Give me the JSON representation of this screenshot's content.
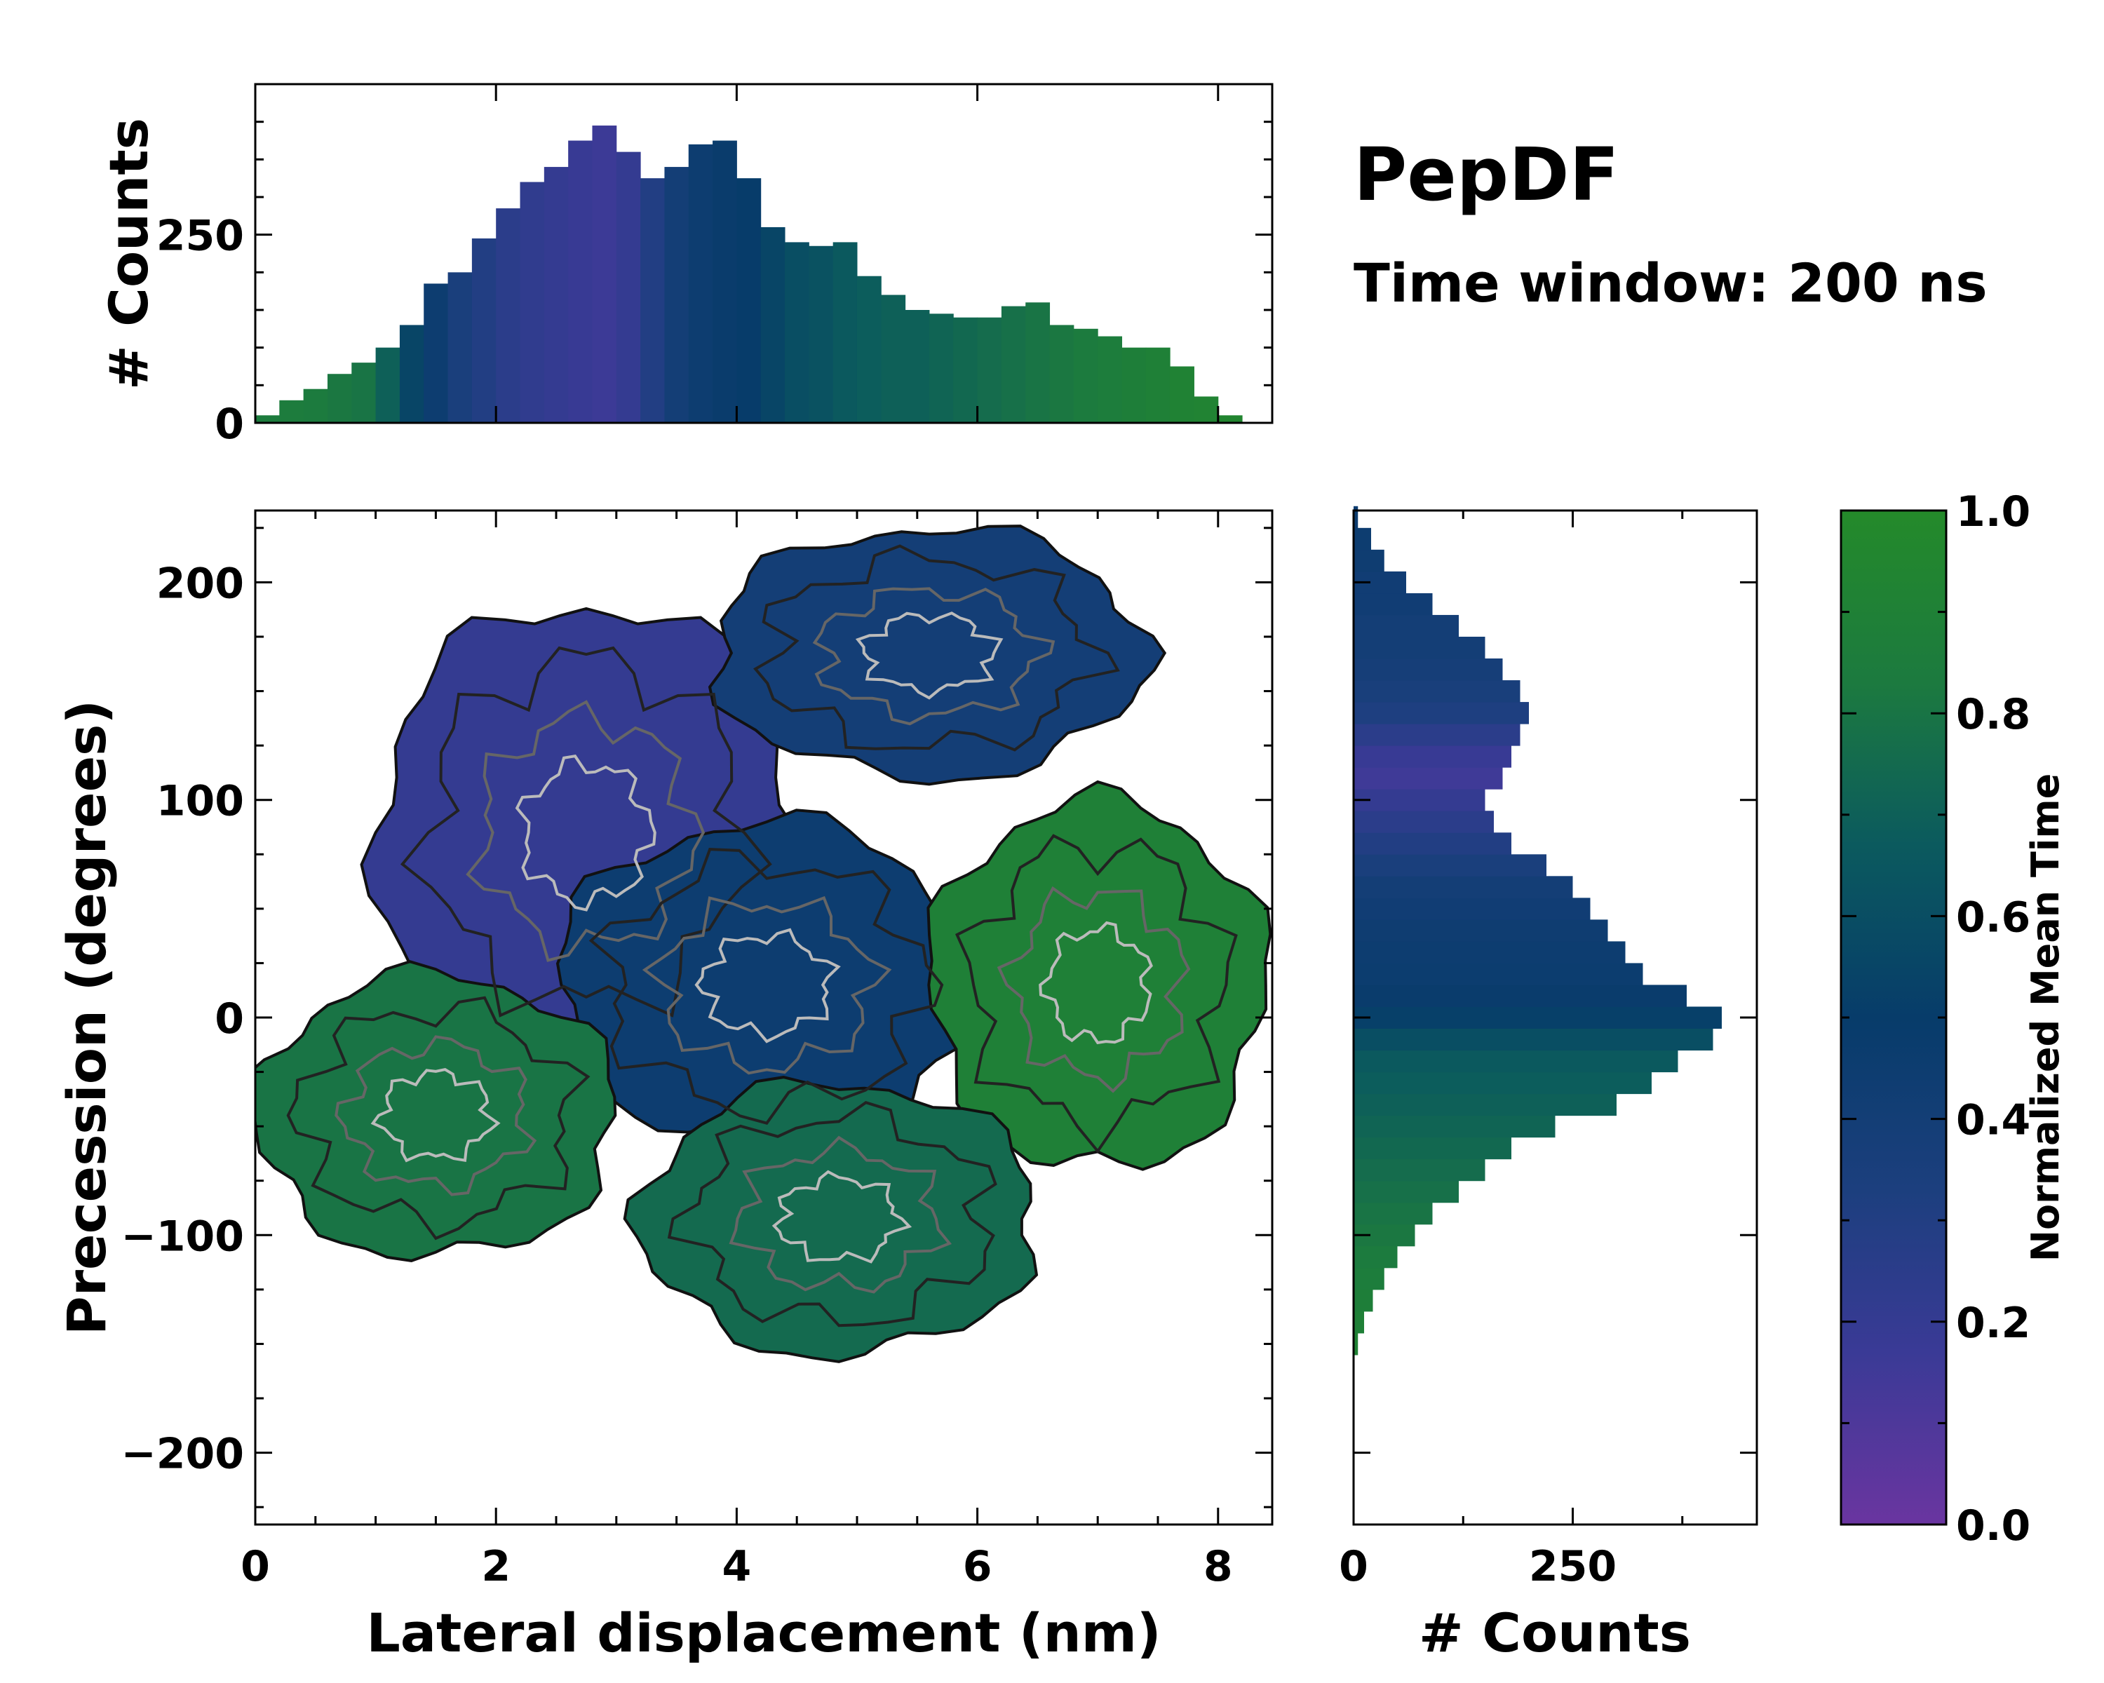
{
  "chart_data": {
    "type": "heatmap",
    "title": "PepDF",
    "subtitle": "Time window: 200 ns",
    "main": {
      "xlabel": "Lateral displacement (nm)",
      "ylabel": "Precession (degrees)",
      "xlim": [
        0,
        8.45
      ],
      "ylim": [
        -233,
        233
      ],
      "xticks": [
        0,
        2,
        4,
        6,
        8
      ],
      "xtick_labels": [
        "0",
        "2",
        "4",
        "6",
        "8"
      ],
      "yticks": [
        -200,
        -100,
        0,
        100,
        200
      ],
      "ytick_labels": [
        "−200",
        "−100",
        "0",
        "100",
        "200"
      ],
      "density_regions": [
        {
          "name": "upper-left lobe",
          "x": [
            1.0,
            4.5
          ],
          "y": [
            -20,
            190
          ],
          "mean_time": 0.2
        },
        {
          "name": "upper lobe",
          "x": [
            3.8,
            7.4
          ],
          "y": [
            110,
            225
          ],
          "mean_time": 0.4
        },
        {
          "name": "central region",
          "x": [
            2.5,
            6.0
          ],
          "y": [
            -60,
            90
          ],
          "mean_time": 0.45
        },
        {
          "name": "right lobe",
          "x": [
            5.6,
            8.4
          ],
          "y": [
            -70,
            100
          ],
          "mean_time": 0.9
        },
        {
          "name": "lower-left lobe",
          "x": [
            0.0,
            3.0
          ],
          "y": [
            -110,
            20
          ],
          "mean_time": 0.8
        },
        {
          "name": "lower lobe",
          "x": [
            3.2,
            6.5
          ],
          "y": [
            -155,
            -30
          ],
          "mean_time": 0.75
        }
      ]
    },
    "top_histogram": {
      "ylabel": "# Counts",
      "ylim": [
        0,
        450
      ],
      "yticks": [
        0,
        250
      ],
      "ytick_labels": [
        "0",
        "250"
      ],
      "x": [
        0.1,
        0.3,
        0.5,
        0.7,
        0.9,
        1.1,
        1.3,
        1.5,
        1.7,
        1.9,
        2.1,
        2.3,
        2.5,
        2.7,
        2.9,
        3.1,
        3.3,
        3.5,
        3.7,
        3.9,
        4.1,
        4.3,
        4.5,
        4.7,
        4.9,
        5.1,
        5.3,
        5.5,
        5.7,
        5.9,
        6.1,
        6.3,
        6.5,
        6.7,
        6.9,
        7.1,
        7.3,
        7.5,
        7.7,
        7.9,
        8.1
      ],
      "values": [
        10,
        30,
        45,
        65,
        80,
        100,
        130,
        185,
        200,
        245,
        285,
        320,
        340,
        375,
        395,
        360,
        325,
        340,
        370,
        375,
        325,
        260,
        240,
        235,
        240,
        195,
        170,
        150,
        145,
        140,
        140,
        155,
        160,
        130,
        125,
        115,
        100,
        100,
        75,
        35,
        10
      ],
      "mean_time": [
        0.85,
        0.85,
        0.84,
        0.82,
        0.8,
        0.7,
        0.55,
        0.45,
        0.35,
        0.3,
        0.25,
        0.22,
        0.2,
        0.18,
        0.16,
        0.2,
        0.3,
        0.4,
        0.45,
        0.48,
        0.5,
        0.55,
        0.6,
        0.62,
        0.66,
        0.68,
        0.7,
        0.7,
        0.72,
        0.74,
        0.76,
        0.78,
        0.8,
        0.82,
        0.84,
        0.86,
        0.88,
        0.9,
        0.92,
        0.93,
        0.95
      ]
    },
    "right_histogram": {
      "xlabel": "# Counts",
      "xlim": [
        0,
        460
      ],
      "xticks": [
        0,
        250
      ],
      "xtick_labels": [
        "0",
        "250"
      ],
      "y": [
        -150,
        -140,
        -130,
        -120,
        -110,
        -100,
        -90,
        -80,
        -70,
        -60,
        -50,
        -40,
        -30,
        -20,
        -10,
        0,
        10,
        20,
        30,
        40,
        50,
        60,
        70,
        80,
        90,
        100,
        110,
        120,
        130,
        140,
        150,
        160,
        170,
        180,
        190,
        200,
        210,
        220,
        230
      ],
      "values": [
        5,
        12,
        22,
        35,
        50,
        70,
        90,
        120,
        150,
        180,
        230,
        300,
        340,
        370,
        410,
        420,
        380,
        330,
        310,
        290,
        270,
        250,
        220,
        180,
        160,
        150,
        170,
        180,
        190,
        200,
        190,
        170,
        150,
        120,
        90,
        60,
        35,
        20,
        5
      ],
      "mean_time": [
        0.92,
        0.9,
        0.88,
        0.86,
        0.84,
        0.82,
        0.8,
        0.78,
        0.76,
        0.74,
        0.72,
        0.7,
        0.68,
        0.66,
        0.6,
        0.52,
        0.48,
        0.46,
        0.45,
        0.44,
        0.42,
        0.4,
        0.35,
        0.3,
        0.25,
        0.2,
        0.15,
        0.18,
        0.25,
        0.32,
        0.36,
        0.38,
        0.4,
        0.4,
        0.42,
        0.42,
        0.44,
        0.45,
        0.45
      ]
    },
    "colorbar": {
      "label": "Normalized Mean Time",
      "range": [
        0.0,
        1.0
      ],
      "ticks": [
        0.0,
        0.2,
        0.4,
        0.6,
        0.8,
        1.0
      ],
      "tick_labels": [
        "0.0",
        "0.2",
        "0.4",
        "0.6",
        "0.8",
        "1.0"
      ],
      "colors": [
        "#6a35a0",
        "#3a3a96",
        "#1c3f7e",
        "#073c6a",
        "#0b5a5e",
        "#1c7a3f",
        "#248a2a"
      ]
    }
  }
}
